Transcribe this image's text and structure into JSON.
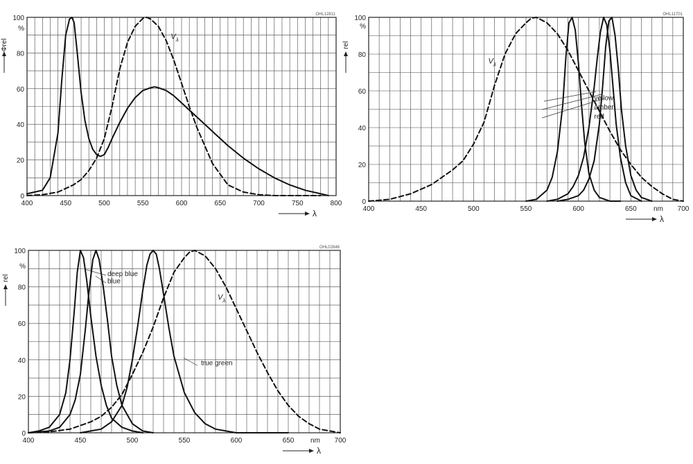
{
  "chart_data": [
    {
      "type": "line",
      "code": "OHL12811",
      "xlim": [
        400,
        800
      ],
      "ylim": [
        0,
        100
      ],
      "xticks": [
        "400",
        "450",
        "500",
        "550",
        "600",
        "650",
        "700",
        "750",
        "800"
      ],
      "yticks": [
        "0",
        "20",
        "40",
        "60",
        "80",
        "100"
      ],
      "y_unit": "%",
      "x_unit": "",
      "ylabel": "Φrel",
      "xlabel": "λ",
      "grid": true,
      "series": [
        {
          "name": "",
          "style": "solid",
          "x": [
            400,
            410,
            420,
            430,
            440,
            445,
            450,
            455,
            458,
            461,
            465,
            470,
            475,
            480,
            485,
            490,
            495,
            500,
            505,
            510,
            520,
            530,
            540,
            550,
            560,
            565,
            570,
            580,
            590,
            600,
            610,
            620,
            640,
            660,
            680,
            700,
            720,
            740,
            760,
            780,
            790
          ],
          "y": [
            1,
            2,
            3,
            10,
            35,
            65,
            90,
            99,
            100,
            97,
            80,
            58,
            42,
            32,
            26,
            23,
            22,
            23,
            27,
            32,
            41,
            49,
            55,
            59,
            60.5,
            61,
            60.5,
            59,
            56,
            52,
            48,
            44,
            36,
            28,
            21,
            15,
            10,
            6,
            3,
            1,
            0
          ]
        },
        {
          "name": "V",
          "style": "dashed",
          "x": [
            400,
            420,
            440,
            460,
            470,
            480,
            490,
            500,
            510,
            520,
            530,
            540,
            550,
            555,
            560,
            570,
            580,
            590,
            600,
            610,
            620,
            640,
            660,
            680,
            700,
            720,
            740,
            760,
            780
          ],
          "y": [
            0,
            0.5,
            2,
            6,
            9,
            14,
            21,
            32,
            50,
            71,
            86,
            95,
            99.5,
            100,
            99,
            95,
            87,
            76,
            63,
            50,
            38,
            18,
            6,
            2,
            0.5,
            0,
            0,
            0,
            0
          ]
        }
      ],
      "annotations": [
        {
          "text": "V",
          "sub": "λ",
          "x": 586,
          "y": 88
        }
      ]
    },
    {
      "type": "line",
      "code": "OHL11701",
      "xlim": [
        400,
        700
      ],
      "ylim": [
        0,
        100
      ],
      "xticks": [
        "400",
        "450",
        "500",
        "550",
        "600",
        "650",
        "700"
      ],
      "yticks": [
        "0",
        "20",
        "40",
        "60",
        "80",
        "100"
      ],
      "y_unit": "%",
      "x_unit": "nm",
      "ylabel": "rel",
      "xlabel": "λ",
      "grid": true,
      "series": [
        {
          "name": "V",
          "style": "dashed",
          "x": [
            400,
            420,
            440,
            460,
            480,
            490,
            500,
            510,
            520,
            530,
            540,
            550,
            555,
            560,
            570,
            580,
            590,
            600,
            610,
            620,
            630,
            640,
            650,
            660,
            670,
            680,
            690,
            700
          ],
          "y": [
            0,
            1,
            4,
            9,
            17,
            22,
            31,
            43,
            63,
            80,
            91,
            97,
            99.5,
            100,
            97,
            91,
            82,
            71,
            60,
            49,
            38,
            28,
            20,
            13,
            8,
            4,
            1,
            0
          ]
        },
        {
          "name": "yellow",
          "style": "solid",
          "x": [
            550,
            560,
            570,
            575,
            580,
            585,
            588,
            591,
            594,
            597,
            600,
            603,
            606,
            610,
            615,
            620,
            630,
            640
          ],
          "y": [
            0,
            1,
            6,
            13,
            27,
            52,
            78,
            97,
            100,
            93,
            75,
            52,
            32,
            15,
            6,
            2,
            0,
            0
          ]
        },
        {
          "name": "amber",
          "style": "solid",
          "x": [
            570,
            580,
            590,
            595,
            600,
            605,
            610,
            615,
            618,
            621,
            624,
            627,
            630,
            633,
            636,
            640,
            645,
            650,
            660
          ],
          "y": [
            0,
            1,
            4,
            8,
            14,
            24,
            40,
            62,
            78,
            92,
            100,
            96,
            82,
            62,
            42,
            24,
            10,
            3,
            0
          ]
        },
        {
          "name": "red",
          "style": "solid",
          "x": [
            580,
            590,
            600,
            605,
            610,
            615,
            620,
            623,
            626,
            629,
            632,
            635,
            638,
            641,
            645,
            650,
            655,
            660,
            670
          ],
          "y": [
            0,
            1,
            3,
            6,
            12,
            22,
            42,
            62,
            84,
            98,
            100,
            90,
            72,
            50,
            30,
            14,
            6,
            2,
            0
          ]
        }
      ],
      "annotations": [
        {
          "text": "V",
          "sub": "λ",
          "x": 514,
          "y": 75
        },
        {
          "text": "yellow",
          "x": 615,
          "y": 55
        },
        {
          "text": "amber",
          "x": 615,
          "y": 50
        },
        {
          "text": "red",
          "x": 615,
          "y": 45
        }
      ]
    },
    {
      "type": "line",
      "code": "OHL02846",
      "xlim": [
        400,
        700
      ],
      "ylim": [
        0,
        100
      ],
      "xticks": [
        "400",
        "450",
        "500",
        "550",
        "600",
        "650",
        "700"
      ],
      "yticks": [
        "0",
        "20",
        "40",
        "60",
        "80",
        "100"
      ],
      "y_unit": "%",
      "x_unit": "nm",
      "ylabel": "rel",
      "xlabel": "λ",
      "grid": true,
      "series": [
        {
          "name": "deep blue",
          "style": "solid",
          "x": [
            400,
            410,
            420,
            430,
            436,
            440,
            444,
            447,
            450,
            453,
            456,
            460,
            465,
            470,
            475,
            480,
            490,
            500,
            510
          ],
          "y": [
            0,
            1,
            3,
            10,
            22,
            40,
            66,
            88,
            100,
            96,
            84,
            64,
            42,
            26,
            15,
            8,
            3,
            1,
            0
          ]
        },
        {
          "name": "blue",
          "style": "solid",
          "x": [
            400,
            420,
            430,
            440,
            445,
            450,
            455,
            458,
            462,
            465,
            468,
            472,
            476,
            480,
            485,
            490,
            500,
            510,
            520
          ],
          "y": [
            0,
            1,
            3,
            10,
            18,
            32,
            58,
            76,
            95,
            100,
            95,
            80,
            62,
            42,
            26,
            15,
            5,
            1,
            0
          ]
        },
        {
          "name": "true green",
          "style": "solid",
          "x": [
            450,
            470,
            480,
            490,
            495,
            500,
            505,
            510,
            514,
            517,
            520,
            523,
            526,
            530,
            535,
            540,
            550,
            560,
            570,
            580,
            590,
            600,
            620,
            650
          ],
          "y": [
            0,
            2,
            6,
            15,
            25,
            40,
            58,
            78,
            92,
            98,
            100,
            98,
            90,
            76,
            58,
            42,
            22,
            11,
            5,
            2,
            1,
            0,
            0,
            0
          ]
        },
        {
          "name": "V",
          "style": "dashed",
          "x": [
            400,
            420,
            440,
            450,
            460,
            470,
            480,
            490,
            500,
            510,
            520,
            530,
            540,
            550,
            555,
            560,
            570,
            580,
            590,
            600,
            610,
            620,
            630,
            640,
            650,
            660,
            670,
            680,
            690,
            700
          ],
          "y": [
            0,
            0.5,
            2,
            4,
            6,
            9,
            14,
            21,
            32,
            44,
            58,
            74,
            88,
            96,
            99,
            100,
            97,
            90,
            80,
            68,
            56,
            44,
            33,
            23,
            15,
            9,
            5,
            2,
            1,
            0
          ]
        }
      ],
      "annotations": [
        {
          "text": "deep blue",
          "x": 476,
          "y": 86
        },
        {
          "text": "blue",
          "x": 476,
          "y": 82
        },
        {
          "text": "V",
          "sub": "λ",
          "x": 582,
          "y": 73
        },
        {
          "text": "true green",
          "x": 566,
          "y": 37
        }
      ]
    }
  ]
}
